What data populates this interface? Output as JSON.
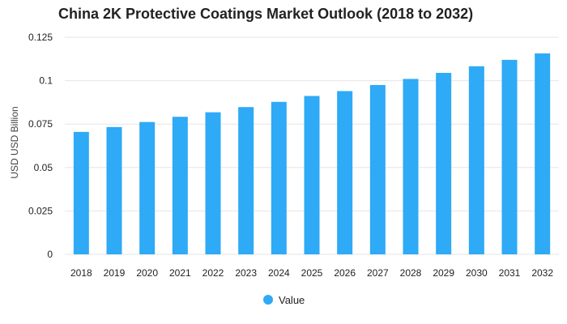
{
  "chart_data": {
    "type": "bar",
    "title": "China 2K Protective Coatings Market Outlook (2018 to 2032)",
    "xlabel": "",
    "ylabel": "USD USD Billion",
    "categories": [
      "2018",
      "2019",
      "2020",
      "2021",
      "2022",
      "2023",
      "2024",
      "2025",
      "2026",
      "2027",
      "2028",
      "2029",
      "2030",
      "2031",
      "2032"
    ],
    "series": [
      {
        "name": "Value",
        "values": [
          0.0705,
          0.0733,
          0.0762,
          0.0792,
          0.0818,
          0.0848,
          0.0878,
          0.0912,
          0.094,
          0.0975,
          0.101,
          0.1045,
          0.1083,
          0.112,
          0.1157
        ]
      }
    ],
    "ylim": [
      0,
      0.125
    ],
    "yticks": [
      0,
      0.025,
      0.05,
      0.075,
      0.1,
      0.125
    ],
    "ytick_labels": [
      "0",
      "0.025",
      "0.05",
      "0.075",
      "0.1",
      "0.125"
    ],
    "grid": true,
    "legend_position": "bottom",
    "colors": {
      "bar": "#2eaaf6",
      "grid": "#e6e6e6",
      "axis_text": "#222222"
    }
  }
}
